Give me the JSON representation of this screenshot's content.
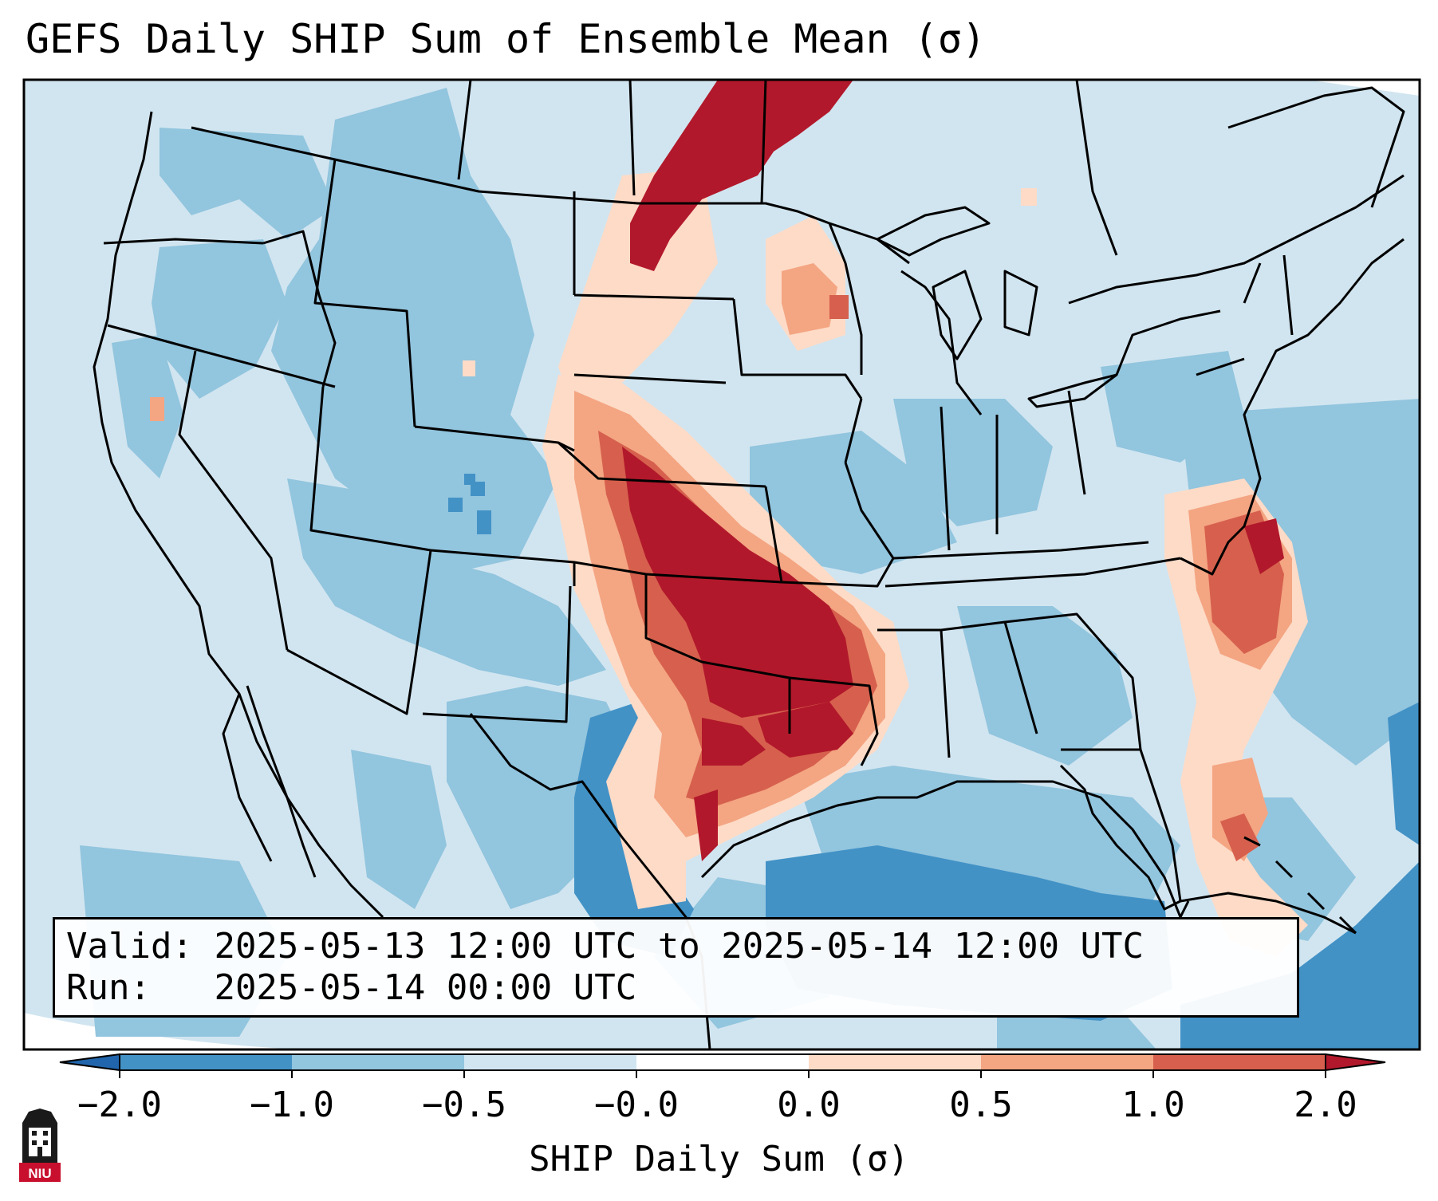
{
  "title": "GEFS Daily SHIP Sum of Ensemble Mean (σ)",
  "info": {
    "valid_label": "Valid:",
    "valid_value": "2025-05-13 12:00 UTC to 2025-05-14 12:00 UTC",
    "run_label": "Run:",
    "run_value": "2025-05-14 00:00 UTC"
  },
  "colorbar": {
    "label": "SHIP Daily Sum (σ)",
    "ticks": [
      "−2.0",
      "−1.0",
      "−0.5",
      "−0.0",
      "0.0",
      "0.5",
      "1.0",
      "2.0"
    ],
    "colors": [
      "#4292c6",
      "#92c5de",
      "#d1e5f0",
      "#ffffff",
      "#fddbc7",
      "#f4a582",
      "#d6604d",
      "#b2182b"
    ],
    "extend_low_color": "#2166ac",
    "extend_high_color": "#b2182b"
  },
  "map": {
    "background_color": "#d1e5f0",
    "outside_color": "#ffffff",
    "features": [
      "US state boundaries",
      "Canada province boundaries",
      "Mexico",
      "Great Lakes",
      "Gulf of Mexico",
      "Cuba",
      "Bahamas"
    ]
  },
  "logo": {
    "icon": "niu-logo-icon",
    "text": "NIU"
  }
}
